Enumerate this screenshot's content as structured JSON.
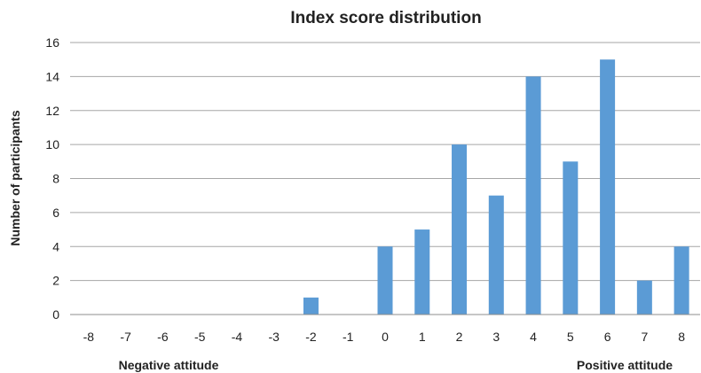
{
  "chart_data": {
    "type": "bar",
    "title": "Index score distribution",
    "xlabel": "",
    "ylabel": "Number of participants",
    "categories": [
      "-8",
      "-7",
      "-6",
      "-5",
      "-4",
      "-3",
      "-2",
      "-1",
      "0",
      "1",
      "2",
      "3",
      "4",
      "5",
      "6",
      "7",
      "8"
    ],
    "values": [
      0,
      0,
      0,
      0,
      0,
      0,
      1,
      0,
      4,
      5,
      10,
      7,
      14,
      9,
      15,
      2,
      4
    ],
    "ylim": [
      0,
      16
    ],
    "yticks": [
      0,
      2,
      4,
      6,
      8,
      10,
      12,
      14,
      16
    ],
    "grid": true,
    "legend": "none",
    "bar_color": "#5b9bd5",
    "annotations": {
      "left": "Negative attitude",
      "right": "Positive attitude"
    }
  }
}
